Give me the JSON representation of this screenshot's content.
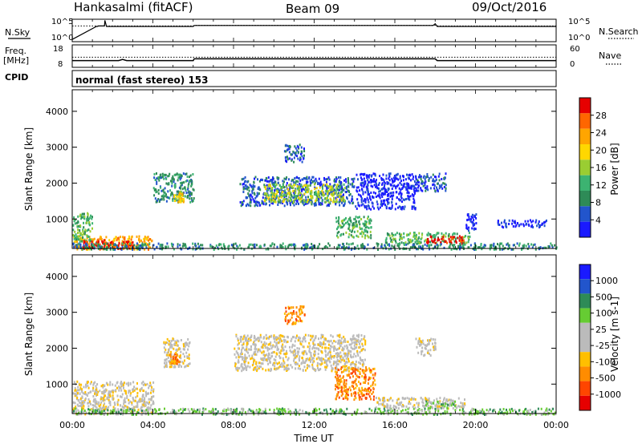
{
  "header": {
    "station": "Hankasalmi (fitACF)",
    "beam": "Beam 09",
    "date": "09/Oct/2016"
  },
  "side_labels": {
    "nsky": "N.Sky",
    "nsearch": "N.Search",
    "freq_line1": "Freq.",
    "freq_line2": "[MHz]",
    "nave": "Nave",
    "cpid": "CPID"
  },
  "cpid_text": "normal (fast stereo) 153",
  "colors": {
    "power": [
      "#1a1aff",
      "#2255cc",
      "#2e8b57",
      "#3cb371",
      "#9acd32",
      "#ffd700",
      "#ffa500",
      "#ff6600",
      "#e60000"
    ],
    "velocity": [
      "#e60000",
      "#ff4500",
      "#ff8c00",
      "#ffbf00",
      "#bbbbbb",
      "#bbbbbb",
      "#66cc33",
      "#2e8b57",
      "#2255cc",
      "#1a1aff"
    ]
  },
  "chart_data": [
    {
      "type": "line",
      "name_panel": "noise",
      "left_ticks": [
        "10^5",
        "10^0"
      ],
      "right_ticks": [
        "10^5",
        "10^0"
      ],
      "series": [
        {
          "name": "N.Sky",
          "x": [
            0,
            1.2,
            1.25,
            1.3,
            1.6,
            1.62,
            1.7,
            6,
            6.05,
            14,
            17.9,
            18,
            18.1,
            24
          ],
          "y": [
            0.1,
            0.68,
            0.68,
            0.7,
            0.7,
            0.95,
            0.68,
            0.68,
            0.72,
            0.72,
            0.72,
            0.8,
            0.68,
            0.68
          ]
        },
        {
          "name": "N.Search",
          "x": [
            0,
            6,
            6.05,
            18,
            18.1,
            24
          ],
          "y": [
            0.7,
            0.7,
            0.73,
            0.73,
            0.7,
            0.7
          ]
        }
      ]
    },
    {
      "type": "line",
      "name_panel": "frequency",
      "left_ticks": [
        "18",
        "8"
      ],
      "right_ticks": [
        "60",
        "0"
      ],
      "series": [
        {
          "name": "Freq",
          "x": [
            0,
            2.3,
            2.5,
            2.7,
            2.9,
            6,
            6.05,
            18,
            18.1,
            24
          ],
          "y": [
            11,
            11,
            11.5,
            11,
            11,
            11,
            11.8,
            11.8,
            11,
            11
          ]
        },
        {
          "name": "Nave",
          "x": [
            0,
            24
          ],
          "y": [
            12.5,
            12.5
          ]
        }
      ]
    },
    {
      "type": "heatmap",
      "name_panel": "power",
      "xlabel": "",
      "ylabel": "Slant Range [km]",
      "xlim": [
        0,
        24
      ],
      "ylim": [
        180,
        4600
      ],
      "yticks": [
        1000,
        2000,
        3000,
        4000
      ],
      "colorbar": {
        "label": "Power [dB]",
        "ticks": [
          "4",
          "8",
          "12",
          "16",
          "20",
          "24",
          "28"
        ]
      },
      "regions": [
        {
          "x": [
            0,
            4
          ],
          "y": [
            180,
            550
          ],
          "level": 6
        },
        {
          "x": [
            0,
            1
          ],
          "y": [
            400,
            1200
          ],
          "level": 3
        },
        {
          "x": [
            0.5,
            3
          ],
          "y": [
            200,
            450
          ],
          "level": 8
        },
        {
          "x": [
            4,
            6
          ],
          "y": [
            1500,
            2300
          ],
          "level": 2
        },
        {
          "x": [
            5,
            5.5
          ],
          "y": [
            1500,
            1800
          ],
          "level": 5
        },
        {
          "x": [
            8.3,
            14
          ],
          "y": [
            1400,
            2200
          ],
          "level": 1
        },
        {
          "x": [
            9.5,
            13.5
          ],
          "y": [
            1500,
            2000
          ],
          "level": 4
        },
        {
          "x": [
            10.5,
            11.5
          ],
          "y": [
            2600,
            3100
          ],
          "level": 1
        },
        {
          "x": [
            13,
            14.8
          ],
          "y": [
            500,
            1100
          ],
          "level": 3
        },
        {
          "x": [
            14,
            17
          ],
          "y": [
            1300,
            2300
          ],
          "level": 0
        },
        {
          "x": [
            15.5,
            19.7
          ],
          "y": [
            350,
            650
          ],
          "level": 3
        },
        {
          "x": [
            17.5,
            19.5
          ],
          "y": [
            350,
            550
          ],
          "level": 8
        },
        {
          "x": [
            0,
            24
          ],
          "y": [
            180,
            350
          ],
          "level": 2
        },
        {
          "x": [
            17,
            18.5
          ],
          "y": [
            1800,
            2300
          ],
          "level": 1
        },
        {
          "x": [
            19.5,
            20
          ],
          "y": [
            700,
            1200
          ],
          "level": 0
        },
        {
          "x": [
            21,
            23.5
          ],
          "y": [
            800,
            1000
          ],
          "level": 0
        }
      ]
    },
    {
      "type": "heatmap",
      "name_panel": "velocity",
      "xlabel": "Time UT",
      "ylabel": "Slant Range [km]",
      "xlim": [
        0,
        24
      ],
      "ylim": [
        180,
        4600
      ],
      "xticks": [
        "00:00",
        "04:00",
        "08:00",
        "12:00",
        "16:00",
        "20:00",
        "00:00"
      ],
      "yticks": [
        1000,
        2000,
        3000,
        4000
      ],
      "colorbar": {
        "label": "Velocity [m s-1]",
        "ticks": [
          "1000",
          "500",
          "100",
          "25",
          "-25",
          "-100",
          "-500",
          "-1000"
        ]
      },
      "regions": [
        {
          "x": [
            0,
            4
          ],
          "y": [
            180,
            1100
          ],
          "level": 4
        },
        {
          "x": [
            0,
            24
          ],
          "y": [
            180,
            350
          ],
          "level": 6
        },
        {
          "x": [
            4.5,
            5.8
          ],
          "y": [
            1500,
            2300
          ],
          "level": 4
        },
        {
          "x": [
            4.8,
            5.3
          ],
          "y": [
            1600,
            1900
          ],
          "level": 2
        },
        {
          "x": [
            8,
            14.5
          ],
          "y": [
            1400,
            2400
          ],
          "level": 4
        },
        {
          "x": [
            10.5,
            11.5
          ],
          "y": [
            2700,
            3200
          ],
          "level": 2
        },
        {
          "x": [
            13,
            15
          ],
          "y": [
            600,
            1500
          ],
          "level": 2
        },
        {
          "x": [
            15,
            19.5
          ],
          "y": [
            350,
            650
          ],
          "level": 4
        },
        {
          "x": [
            17.5,
            19
          ],
          "y": [
            350,
            550
          ],
          "level": 6
        },
        {
          "x": [
            17,
            18
          ],
          "y": [
            1800,
            2300
          ],
          "level": 4
        }
      ]
    }
  ]
}
